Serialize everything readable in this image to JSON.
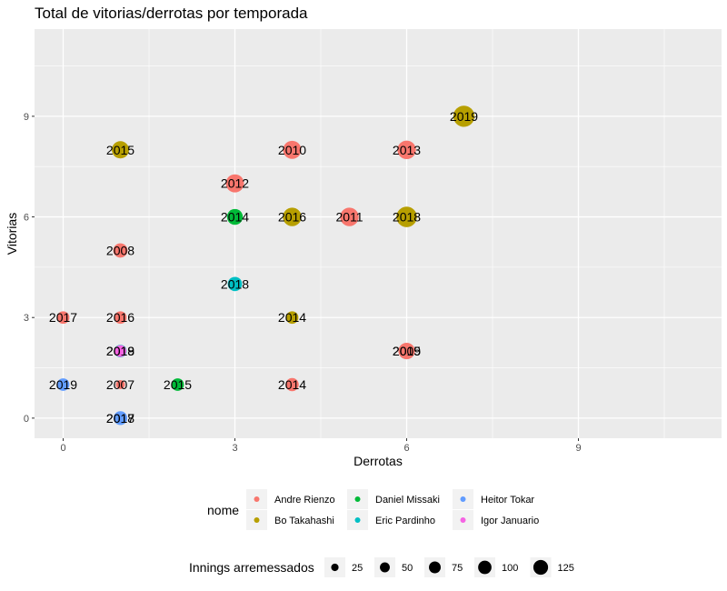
{
  "chart_data": {
    "type": "scatter",
    "title": "Total de vitorias/derrotas por temporada",
    "xlabel": "Derrotas",
    "ylabel": "Vitorias",
    "xlim": [
      -0.5,
      11.5
    ],
    "ylim": [
      -0.6,
      11.6
    ],
    "xticks": [
      0,
      3,
      6,
      9
    ],
    "yticks": [
      0,
      3,
      6,
      9
    ],
    "grid": true,
    "legend_position": "bottom",
    "color_legend": {
      "title": "nome",
      "entries": [
        {
          "name": "Andre Rienzo",
          "color": "#F8766D"
        },
        {
          "name": "Bo Takahashi",
          "color": "#B79F00"
        },
        {
          "name": "Daniel Missaki",
          "color": "#00BA38"
        },
        {
          "name": "Eric Pardinho",
          "color": "#00BFC4"
        },
        {
          "name": "Heitor Tokar",
          "color": "#619CFF"
        },
        {
          "name": "Igor Januario",
          "color": "#F564E3"
        }
      ]
    },
    "size_legend": {
      "title": "Innings arremessados",
      "values": [
        25,
        50,
        75,
        100,
        125
      ]
    },
    "points": [
      {
        "nome": "Andre Rienzo",
        "x": 1,
        "y": 1,
        "label": "2007",
        "innings": 18
      },
      {
        "nome": "Andre Rienzo",
        "x": 1,
        "y": 5,
        "label": "2008",
        "innings": 55
      },
      {
        "nome": "Andre Rienzo",
        "x": 6,
        "y": 2,
        "label": "2009",
        "innings": 75
      },
      {
        "nome": "Andre Rienzo",
        "x": 4,
        "y": 8,
        "label": "2010",
        "innings": 95
      },
      {
        "nome": "Andre Rienzo",
        "x": 5,
        "y": 6,
        "label": "2011",
        "innings": 100
      },
      {
        "nome": "Andre Rienzo",
        "x": 3,
        "y": 7,
        "label": "2012",
        "innings": 95
      },
      {
        "nome": "Andre Rienzo",
        "x": 6,
        "y": 8,
        "label": "2013",
        "innings": 100
      },
      {
        "nome": "Andre Rienzo",
        "x": 4,
        "y": 1,
        "label": "2014",
        "innings": 45
      },
      {
        "nome": "Andre Rienzo",
        "x": 6,
        "y": 2,
        "label": "2015",
        "innings": 75
      },
      {
        "nome": "Andre Rienzo",
        "x": 1,
        "y": 3,
        "label": "2016",
        "innings": 40
      },
      {
        "nome": "Andre Rienzo",
        "x": 0,
        "y": 3,
        "label": "2017",
        "innings": 40
      },
      {
        "nome": "Bo Takahashi",
        "x": 4,
        "y": 3,
        "label": "2014",
        "innings": 40
      },
      {
        "nome": "Bo Takahashi",
        "x": 1,
        "y": 8,
        "label": "2015",
        "innings": 85
      },
      {
        "nome": "Bo Takahashi",
        "x": 4,
        "y": 6,
        "label": "2016",
        "innings": 100
      },
      {
        "nome": "Bo Takahashi",
        "x": 6,
        "y": 6,
        "label": "2018",
        "innings": 125
      },
      {
        "nome": "Bo Takahashi",
        "x": 7,
        "y": 9,
        "label": "2019",
        "innings": 135
      },
      {
        "nome": "Daniel Missaki",
        "x": 3,
        "y": 6,
        "label": "2014",
        "innings": 70
      },
      {
        "nome": "Daniel Missaki",
        "x": 2,
        "y": 1,
        "label": "2015",
        "innings": 40
      },
      {
        "nome": "Eric Pardinho",
        "x": 3,
        "y": 4,
        "label": "2018",
        "innings": 55
      },
      {
        "nome": "Eric Pardinho",
        "x": 1,
        "y": 2,
        "label": "2019",
        "innings": 40
      },
      {
        "nome": "Heitor Tokar",
        "x": 1,
        "y": 0,
        "label": "2017",
        "innings": 45
      },
      {
        "nome": "Heitor Tokar",
        "x": 1,
        "y": 0,
        "label": "2018",
        "innings": 50
      },
      {
        "nome": "Heitor Tokar",
        "x": 0,
        "y": 1,
        "label": "2019",
        "innings": 40
      },
      {
        "nome": "Igor Januario",
        "x": 1,
        "y": 2,
        "label": "2018",
        "innings": 35
      }
    ]
  }
}
